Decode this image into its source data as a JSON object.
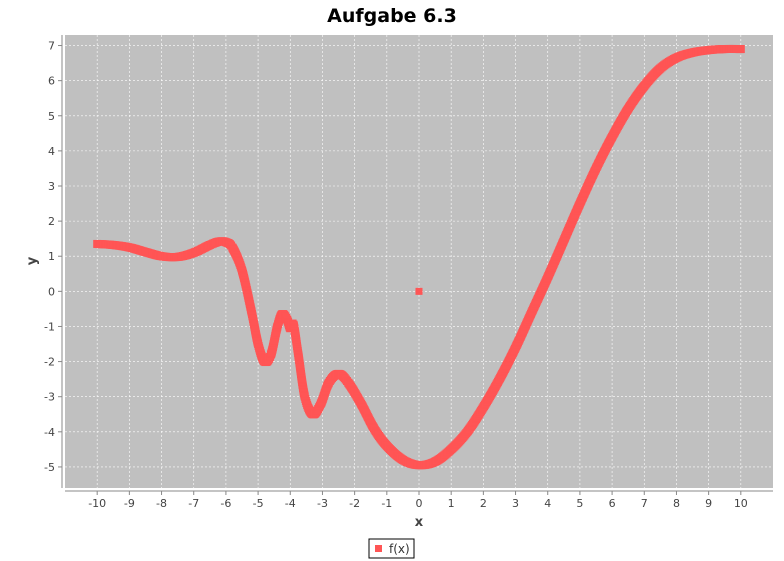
{
  "chart_data": {
    "type": "scatter",
    "title": "Aufgabe 6.3",
    "xlabel": "x",
    "ylabel": "y",
    "xlim": [
      -11,
      11
    ],
    "ylim": [
      -5.6,
      7.3
    ],
    "x_ticks": [
      -10,
      -9,
      -8,
      -7,
      -6,
      -5,
      -4,
      -3,
      -2,
      -1,
      0,
      1,
      2,
      3,
      4,
      5,
      6,
      7,
      8,
      9,
      10
    ],
    "y_ticks": [
      -5,
      -4,
      -3,
      -2,
      -1,
      0,
      1,
      2,
      3,
      4,
      5,
      6,
      7
    ],
    "grid": true,
    "legend_position": "bottom",
    "series": [
      {
        "name": "f(x)",
        "color": "#ff5555",
        "marker": "square",
        "points": [
          [
            -10,
            1.35
          ],
          [
            -9.5,
            1.32
          ],
          [
            -9,
            1.25
          ],
          [
            -8.5,
            1.12
          ],
          [
            -8,
            1.0
          ],
          [
            -7.5,
            0.98
          ],
          [
            -7,
            1.1
          ],
          [
            -6.5,
            1.32
          ],
          [
            -6.2,
            1.42
          ],
          [
            -6,
            1.4
          ],
          [
            -5.8,
            1.25
          ],
          [
            -5.5,
            0.6
          ],
          [
            -5.2,
            -0.6
          ],
          [
            -5.0,
            -1.5
          ],
          [
            -4.8,
            -2.0
          ],
          [
            -4.6,
            -1.8
          ],
          [
            -4.4,
            -1.0
          ],
          [
            -4.25,
            -0.65
          ],
          [
            -4.1,
            -0.8
          ],
          [
            -4.0,
            -1.05
          ],
          [
            -3.9,
            -0.95
          ],
          [
            -3.75,
            -1.8
          ],
          [
            -3.55,
            -3.0
          ],
          [
            -3.3,
            -3.5
          ],
          [
            -3.05,
            -3.2
          ],
          [
            -2.8,
            -2.6
          ],
          [
            -2.5,
            -2.35
          ],
          [
            -2.2,
            -2.6
          ],
          [
            -1.8,
            -3.2
          ],
          [
            -1.4,
            -3.9
          ],
          [
            -1.0,
            -4.4
          ],
          [
            -0.5,
            -4.8
          ],
          [
            0,
            -4.95
          ],
          [
            0.5,
            -4.85
          ],
          [
            1,
            -4.5
          ],
          [
            1.5,
            -4.0
          ],
          [
            2,
            -3.3
          ],
          [
            2.5,
            -2.5
          ],
          [
            3,
            -1.6
          ],
          [
            3.5,
            -0.6
          ],
          [
            4,
            0.4
          ],
          [
            4.5,
            1.45
          ],
          [
            5,
            2.5
          ],
          [
            5.5,
            3.5
          ],
          [
            6,
            4.4
          ],
          [
            6.5,
            5.2
          ],
          [
            7,
            5.85
          ],
          [
            7.5,
            6.35
          ],
          [
            8,
            6.65
          ],
          [
            8.5,
            6.8
          ],
          [
            9,
            6.87
          ],
          [
            9.5,
            6.9
          ],
          [
            10,
            6.9
          ]
        ],
        "isolated_points": [
          [
            0,
            0
          ]
        ]
      }
    ]
  }
}
